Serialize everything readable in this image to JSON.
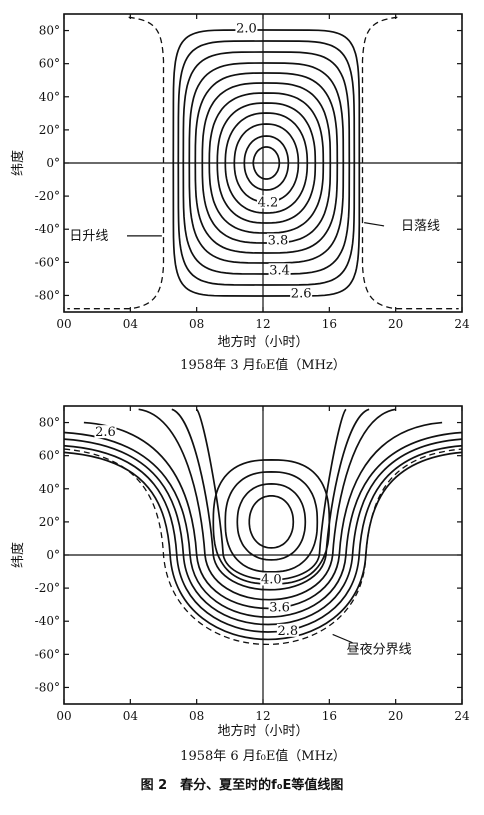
{
  "figure_caption": "图 2　春分、夏至时的f₀E等值线图",
  "chart_data": [
    {
      "type": "contour",
      "title": "1958年 3 月f₀E值（MHz）",
      "xlabel": "地方时（小时）",
      "ylabel": "纬度",
      "xlim": [
        0,
        24
      ],
      "ylim": [
        -90,
        90
      ],
      "x_ticks": [
        "00",
        "04",
        "08",
        "12",
        "16",
        "20",
        "24"
      ],
      "y_ticks": [
        "80°",
        "60°",
        "40°",
        "20°",
        "0°",
        "-20°",
        "-40°",
        "-60°",
        "-80°"
      ],
      "contour_labels": [
        {
          "text": "2.0",
          "value": 2.0,
          "at": [
            11.0,
            80
          ]
        },
        {
          "text": "4.2",
          "value": 4.2,
          "at": [
            12.3,
            -25
          ]
        },
        {
          "text": "3.8",
          "value": 3.8,
          "at": [
            12.9,
            -48
          ]
        },
        {
          "text": "3.4",
          "value": 3.4,
          "at": [
            13.0,
            -66
          ]
        },
        {
          "text": "2.6",
          "value": 2.6,
          "at": [
            14.3,
            -80
          ]
        }
      ],
      "annotations": [
        {
          "text": "日升线",
          "at": [
            1.5,
            -44
          ]
        },
        {
          "text": "日落线",
          "at": [
            21.5,
            -38
          ]
        }
      ],
      "levels": [
        2.0,
        2.2,
        2.4,
        2.6,
        2.8,
        3.0,
        3.2,
        3.4,
        3.6,
        3.8,
        4.0,
        4.2
      ],
      "center": [
        12.2,
        0
      ],
      "sunrise_hour": 6,
      "sunset_hour": 18
    },
    {
      "type": "contour",
      "title": "1958年 6 月f₀E值（MHz）",
      "xlabel": "地方时（小时）",
      "ylabel": "纬度",
      "xlim": [
        0,
        24
      ],
      "ylim": [
        -90,
        90
      ],
      "x_ticks": [
        "00",
        "04",
        "08",
        "12",
        "16",
        "20",
        "24"
      ],
      "y_ticks": [
        "80°",
        "60°",
        "40°",
        "20°",
        "0°",
        "-20°",
        "-40°",
        "-60°",
        "-80°"
      ],
      "contour_labels": [
        {
          "text": "2.6",
          "value": 2.6,
          "at": [
            2.5,
            73
          ]
        },
        {
          "text": "4.0",
          "value": 4.0,
          "at": [
            12.5,
            -16
          ]
        },
        {
          "text": "3.6",
          "value": 3.6,
          "at": [
            13.0,
            -33
          ]
        },
        {
          "text": "2.8",
          "value": 2.8,
          "at": [
            13.5,
            -47
          ]
        }
      ],
      "annotations": [
        {
          "text": "昼夜分界线",
          "at": [
            19.0,
            -57
          ]
        }
      ],
      "levels": [
        2.6,
        2.8,
        3.0,
        3.2,
        3.4,
        3.6,
        3.8,
        4.0,
        4.2
      ],
      "center": [
        12.5,
        20
      ]
    }
  ]
}
